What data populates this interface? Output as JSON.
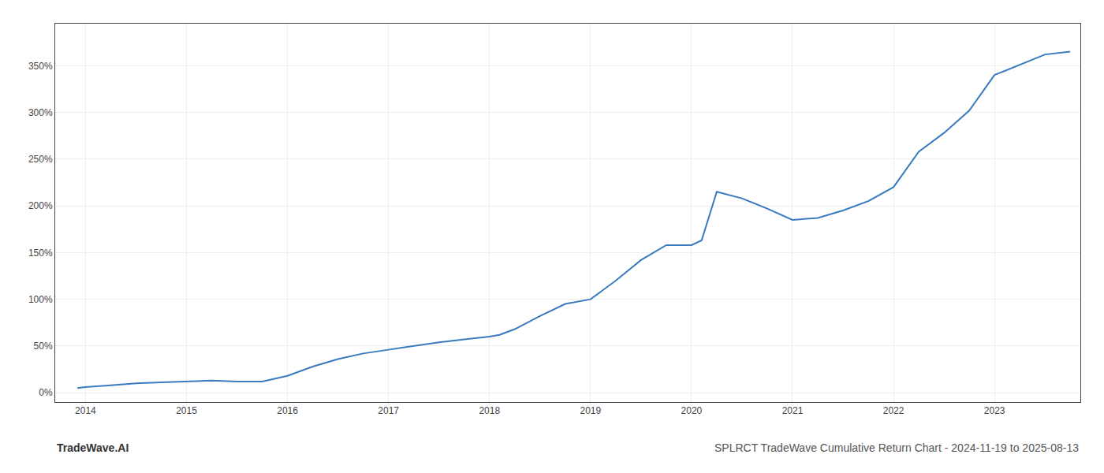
{
  "chart_data": {
    "type": "line",
    "title": "SPLRCT TradeWave Cumulative Return Chart - 2024-11-19 to 2025-08-13",
    "annotations": [
      "TradeWave.AI"
    ],
    "x": [
      2013.92,
      2014.0,
      2014.25,
      2014.5,
      2014.75,
      2015.0,
      2015.25,
      2015.5,
      2015.75,
      2016.0,
      2016.25,
      2016.5,
      2016.75,
      2017.0,
      2017.25,
      2017.5,
      2017.75,
      2018.0,
      2018.1,
      2018.25,
      2018.5,
      2018.75,
      2019.0,
      2019.25,
      2019.5,
      2019.75,
      2020.0,
      2020.1,
      2020.25,
      2020.5,
      2020.75,
      2021.0,
      2021.25,
      2021.5,
      2021.75,
      2022.0,
      2022.25,
      2022.5,
      2022.75,
      2023.0,
      2023.5,
      2023.75
    ],
    "values": [
      5,
      6,
      8,
      10,
      11,
      12,
      13,
      12,
      12,
      18,
      28,
      36,
      42,
      46,
      50,
      54,
      57,
      60,
      62,
      68,
      82,
      95,
      100,
      120,
      142,
      158,
      158,
      163,
      215,
      208,
      197,
      185,
      187,
      195,
      205,
      220,
      258,
      278,
      302,
      340,
      362,
      365
    ],
    "color": "#3a7abf",
    "xlim": [
      2013.7,
      2023.85
    ],
    "ylim": [
      -10,
      395
    ],
    "xticks": [
      2014,
      2015,
      2016,
      2017,
      2018,
      2019,
      2020,
      2021,
      2022,
      2023
    ],
    "yticks": [
      {
        "value": 0,
        "label": "0%"
      },
      {
        "value": 50,
        "label": "50%"
      },
      {
        "value": 100,
        "label": "100%"
      },
      {
        "value": 150,
        "label": "150%"
      },
      {
        "value": 200,
        "label": "200%"
      },
      {
        "value": 250,
        "label": "250%"
      },
      {
        "value": 300,
        "label": "300%"
      },
      {
        "value": 350,
        "label": "350%"
      }
    ],
    "grid": true
  }
}
